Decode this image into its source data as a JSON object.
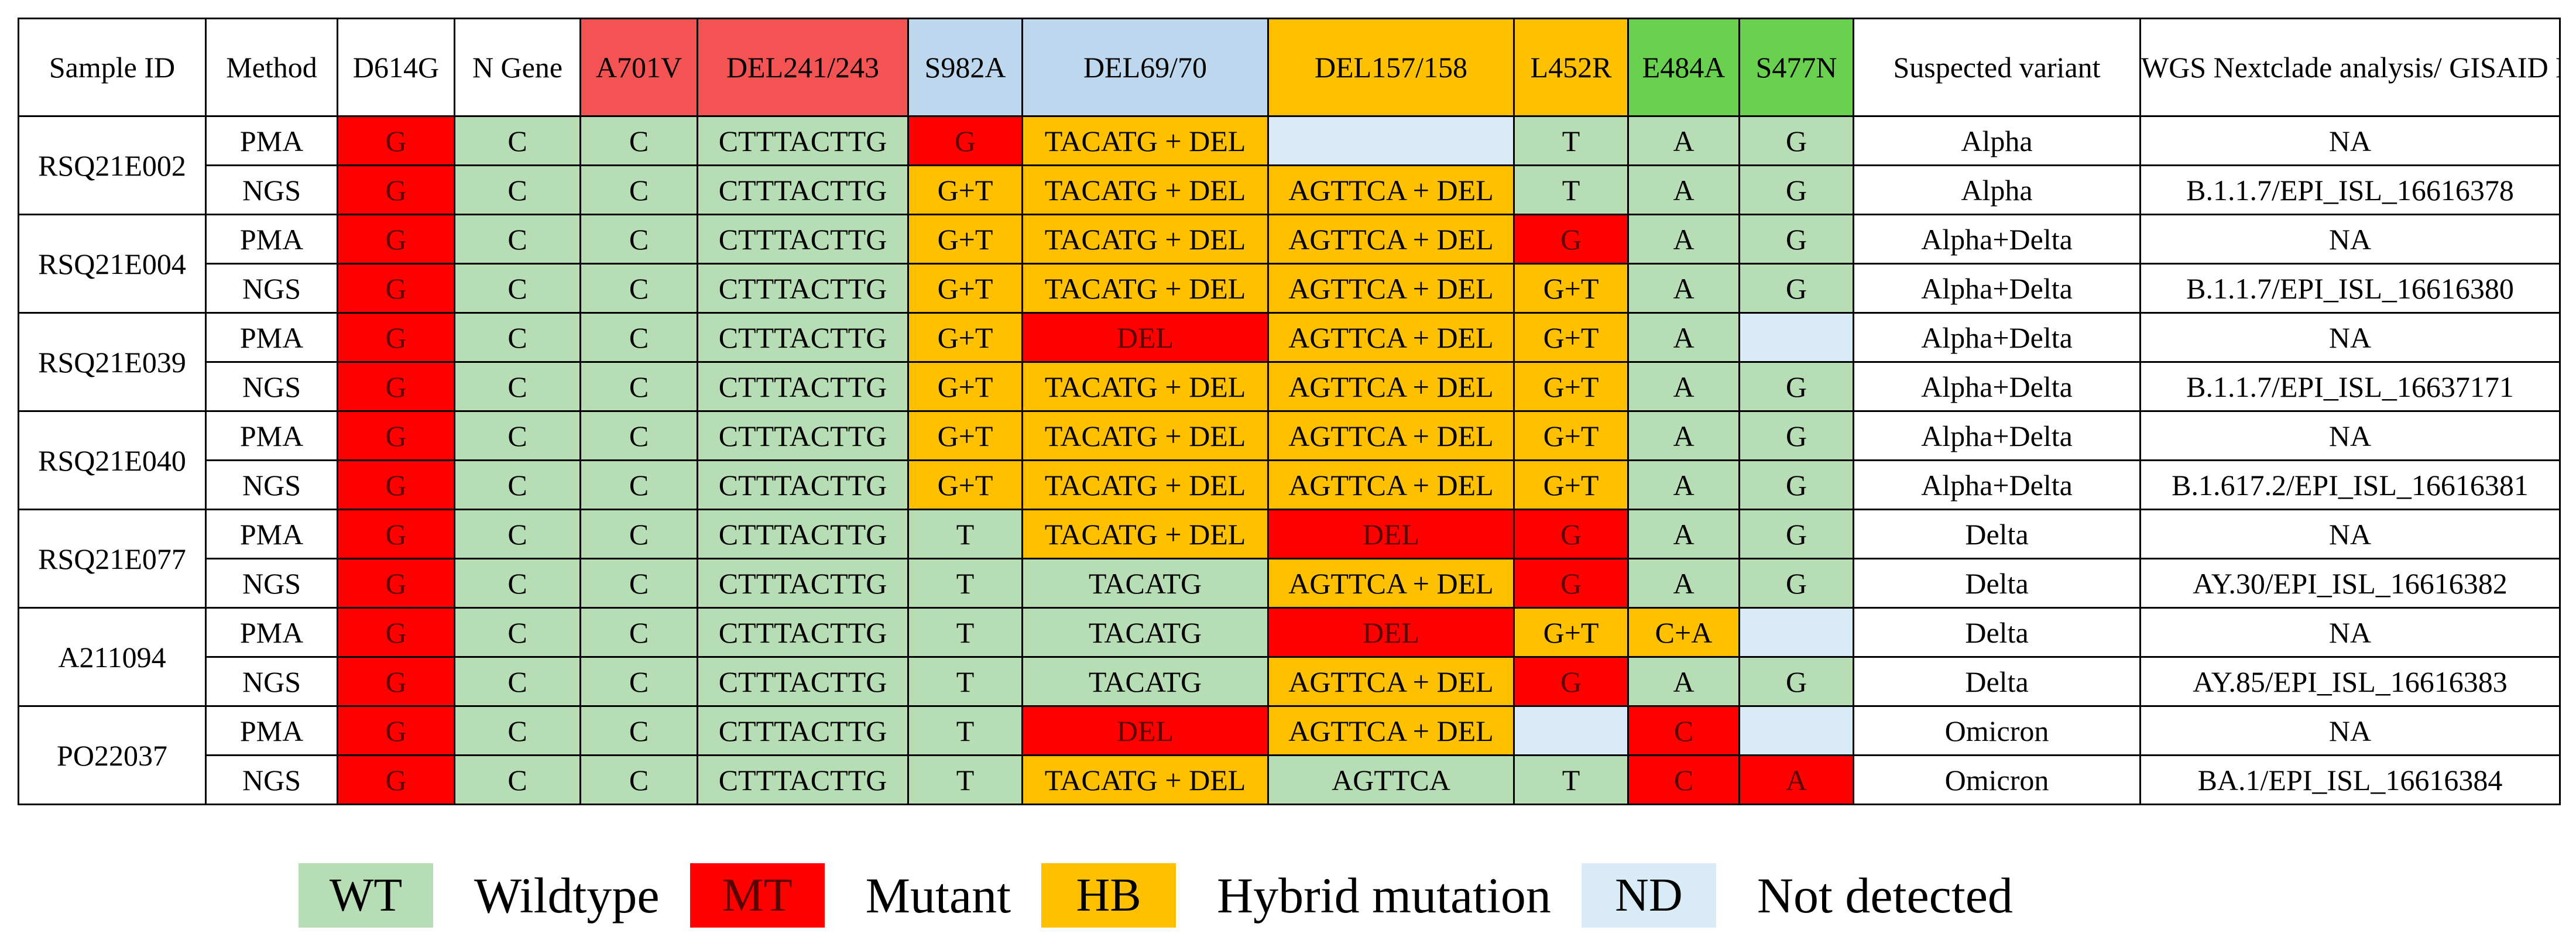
{
  "headers": [
    {
      "label": "Sample ID",
      "color": "white"
    },
    {
      "label": "Method",
      "color": "white"
    },
    {
      "label": "D614G",
      "color": "white"
    },
    {
      "label": "N Gene",
      "color": "white"
    },
    {
      "label": "A701V",
      "color": "red"
    },
    {
      "label": "DEL241/243",
      "color": "red"
    },
    {
      "label": "S982A",
      "color": "blue"
    },
    {
      "label": "DEL69/70",
      "color": "blue"
    },
    {
      "label": "DEL157/158",
      "color": "orange"
    },
    {
      "label": "L452R",
      "color": "orange"
    },
    {
      "label": "E484A",
      "color": "green"
    },
    {
      "label": "S477N",
      "color": "green"
    },
    {
      "label": "Suspected variant",
      "color": "white"
    },
    {
      "label": "WGS Nextclade analysis/ GISAID No.",
      "color": "white"
    }
  ],
  "samples": [
    {
      "id": "RSQ21E002",
      "rows": [
        {
          "method": "PMA",
          "cells": [
            [
              "G",
              "MT"
            ],
            [
              "C",
              "WT"
            ],
            [
              "C",
              "WT"
            ],
            [
              "CTTTACTTG",
              "WT"
            ],
            [
              "G",
              "MT"
            ],
            [
              "TACATG + DEL",
              "HB"
            ],
            [
              "",
              "ND"
            ],
            [
              "T",
              "WT"
            ],
            [
              "A",
              "WT"
            ],
            [
              "G",
              "WT"
            ]
          ],
          "variant": "Alpha",
          "gisaid": "NA"
        },
        {
          "method": "NGS",
          "cells": [
            [
              "G",
              "MT"
            ],
            [
              "C",
              "WT"
            ],
            [
              "C",
              "WT"
            ],
            [
              "CTTTACTTG",
              "WT"
            ],
            [
              "G+T",
              "HB"
            ],
            [
              "TACATG + DEL",
              "HB"
            ],
            [
              "AGTTCA + DEL",
              "HB"
            ],
            [
              "T",
              "WT"
            ],
            [
              "A",
              "WT"
            ],
            [
              "G",
              "WT"
            ]
          ],
          "variant": "Alpha",
          "gisaid": "B.1.1.7/EPI_ISL_16616378"
        }
      ]
    },
    {
      "id": "RSQ21E004",
      "rows": [
        {
          "method": "PMA",
          "cells": [
            [
              "G",
              "MT"
            ],
            [
              "C",
              "WT"
            ],
            [
              "C",
              "WT"
            ],
            [
              "CTTTACTTG",
              "WT"
            ],
            [
              "G+T",
              "HB"
            ],
            [
              "TACATG + DEL",
              "HB"
            ],
            [
              "AGTTCA + DEL",
              "HB"
            ],
            [
              "G",
              "MT"
            ],
            [
              "A",
              "WT"
            ],
            [
              "G",
              "WT"
            ]
          ],
          "variant": "Alpha+Delta",
          "gisaid": "NA"
        },
        {
          "method": "NGS",
          "cells": [
            [
              "G",
              "MT"
            ],
            [
              "C",
              "WT"
            ],
            [
              "C",
              "WT"
            ],
            [
              "CTTTACTTG",
              "WT"
            ],
            [
              "G+T",
              "HB"
            ],
            [
              "TACATG + DEL",
              "HB"
            ],
            [
              "AGTTCA + DEL",
              "HB"
            ],
            [
              "G+T",
              "HB"
            ],
            [
              "A",
              "WT"
            ],
            [
              "G",
              "WT"
            ]
          ],
          "variant": "Alpha+Delta",
          "gisaid": "B.1.1.7/EPI_ISL_16616380"
        }
      ]
    },
    {
      "id": "RSQ21E039",
      "rows": [
        {
          "method": "PMA",
          "cells": [
            [
              "G",
              "MT"
            ],
            [
              "C",
              "WT"
            ],
            [
              "C",
              "WT"
            ],
            [
              "CTTTACTTG",
              "WT"
            ],
            [
              "G+T",
              "HB"
            ],
            [
              "DEL",
              "MT"
            ],
            [
              "AGTTCA + DEL",
              "HB"
            ],
            [
              "G+T",
              "HB"
            ],
            [
              "A",
              "WT"
            ],
            [
              "",
              "ND"
            ]
          ],
          "variant": "Alpha+Delta",
          "gisaid": "NA"
        },
        {
          "method": "NGS",
          "cells": [
            [
              "G",
              "MT"
            ],
            [
              "C",
              "WT"
            ],
            [
              "C",
              "WT"
            ],
            [
              "CTTTACTTG",
              "WT"
            ],
            [
              "G+T",
              "HB"
            ],
            [
              "TACATG + DEL",
              "HB"
            ],
            [
              "AGTTCA + DEL",
              "HB"
            ],
            [
              "G+T",
              "HB"
            ],
            [
              "A",
              "WT"
            ],
            [
              "G",
              "WT"
            ]
          ],
          "variant": "Alpha+Delta",
          "gisaid": "B.1.1.7/EPI_ISL_16637171"
        }
      ]
    },
    {
      "id": "RSQ21E040",
      "rows": [
        {
          "method": "PMA",
          "cells": [
            [
              "G",
              "MT"
            ],
            [
              "C",
              "WT"
            ],
            [
              "C",
              "WT"
            ],
            [
              "CTTTACTTG",
              "WT"
            ],
            [
              "G+T",
              "HB"
            ],
            [
              "TACATG + DEL",
              "HB"
            ],
            [
              "AGTTCA + DEL",
              "HB"
            ],
            [
              "G+T",
              "HB"
            ],
            [
              "A",
              "WT"
            ],
            [
              "G",
              "WT"
            ]
          ],
          "variant": "Alpha+Delta",
          "gisaid": "NA"
        },
        {
          "method": "NGS",
          "cells": [
            [
              "G",
              "MT"
            ],
            [
              "C",
              "WT"
            ],
            [
              "C",
              "WT"
            ],
            [
              "CTTTACTTG",
              "WT"
            ],
            [
              "G+T",
              "HB"
            ],
            [
              "TACATG + DEL",
              "HB"
            ],
            [
              "AGTTCA + DEL",
              "HB"
            ],
            [
              "G+T",
              "HB"
            ],
            [
              "A",
              "WT"
            ],
            [
              "G",
              "WT"
            ]
          ],
          "variant": "Alpha+Delta",
          "gisaid": "B.1.617.2/EPI_ISL_16616381"
        }
      ]
    },
    {
      "id": "RSQ21E077",
      "rows": [
        {
          "method": "PMA",
          "cells": [
            [
              "G",
              "MT"
            ],
            [
              "C",
              "WT"
            ],
            [
              "C",
              "WT"
            ],
            [
              "CTTTACTTG",
              "WT"
            ],
            [
              "T",
              "WT"
            ],
            [
              "TACATG + DEL",
              "HB"
            ],
            [
              "DEL",
              "MT"
            ],
            [
              "G",
              "MT"
            ],
            [
              "A",
              "WT"
            ],
            [
              "G",
              "WT"
            ]
          ],
          "variant": "Delta",
          "gisaid": "NA"
        },
        {
          "method": "NGS",
          "cells": [
            [
              "G",
              "MT"
            ],
            [
              "C",
              "WT"
            ],
            [
              "C",
              "WT"
            ],
            [
              "CTTTACTTG",
              "WT"
            ],
            [
              "T",
              "WT"
            ],
            [
              "TACATG",
              "WT"
            ],
            [
              "AGTTCA + DEL",
              "HB"
            ],
            [
              "G",
              "MT"
            ],
            [
              "A",
              "WT"
            ],
            [
              "G",
              "WT"
            ]
          ],
          "variant": "Delta",
          "gisaid": "AY.30/EPI_ISL_16616382"
        }
      ]
    },
    {
      "id": "A211094",
      "rows": [
        {
          "method": "PMA",
          "cells": [
            [
              "G",
              "MT"
            ],
            [
              "C",
              "WT"
            ],
            [
              "C",
              "WT"
            ],
            [
              "CTTTACTTG",
              "WT"
            ],
            [
              "T",
              "WT"
            ],
            [
              "TACATG",
              "WT"
            ],
            [
              "DEL",
              "MT"
            ],
            [
              "G+T",
              "HB"
            ],
            [
              "C+A",
              "HB"
            ],
            [
              "",
              "ND"
            ]
          ],
          "variant": "Delta",
          "gisaid": "NA"
        },
        {
          "method": "NGS",
          "cells": [
            [
              "G",
              "MT"
            ],
            [
              "C",
              "WT"
            ],
            [
              "C",
              "WT"
            ],
            [
              "CTTTACTTG",
              "WT"
            ],
            [
              "T",
              "WT"
            ],
            [
              "TACATG",
              "WT"
            ],
            [
              "AGTTCA + DEL",
              "HB"
            ],
            [
              "G",
              "MT"
            ],
            [
              "A",
              "WT"
            ],
            [
              "G",
              "WT"
            ]
          ],
          "variant": "Delta",
          "gisaid": "AY.85/EPI_ISL_16616383"
        }
      ]
    },
    {
      "id": "PO22037",
      "rows": [
        {
          "method": "PMA",
          "cells": [
            [
              "G",
              "MT"
            ],
            [
              "C",
              "WT"
            ],
            [
              "C",
              "WT"
            ],
            [
              "CTTTACTTG",
              "WT"
            ],
            [
              "T",
              "WT"
            ],
            [
              "DEL",
              "MT"
            ],
            [
              "AGTTCA + DEL",
              "HB"
            ],
            [
              "",
              "ND"
            ],
            [
              "C",
              "MT"
            ],
            [
              "",
              "ND"
            ]
          ],
          "variant": "Omicron",
          "gisaid": "NA"
        },
        {
          "method": "NGS",
          "cells": [
            [
              "G",
              "MT"
            ],
            [
              "C",
              "WT"
            ],
            [
              "C",
              "WT"
            ],
            [
              "CTTTACTTG",
              "WT"
            ],
            [
              "T",
              "WT"
            ],
            [
              "TACATG + DEL",
              "HB"
            ],
            [
              "AGTTCA",
              "WT"
            ],
            [
              "T",
              "WT"
            ],
            [
              "C",
              "MT"
            ],
            [
              "A",
              "MT"
            ]
          ],
          "variant": "Omicron",
          "gisaid": "BA.1/EPI_ISL_16616384"
        }
      ]
    }
  ],
  "legend": [
    {
      "code": "WT",
      "label": "Wildtype",
      "cls": "c-WT"
    },
    {
      "code": "MT",
      "label": "Mutant",
      "cls": "c-MT"
    },
    {
      "code": "HB",
      "label": "Hybrid mutation",
      "cls": "c-HB"
    },
    {
      "code": "ND",
      "label": "Not detected",
      "cls": "c-ND"
    }
  ],
  "colors": {
    "WT": "#b7ddb4",
    "MT": "#ff0000",
    "HB": "#ffc000",
    "ND": "#d9ebf6"
  }
}
